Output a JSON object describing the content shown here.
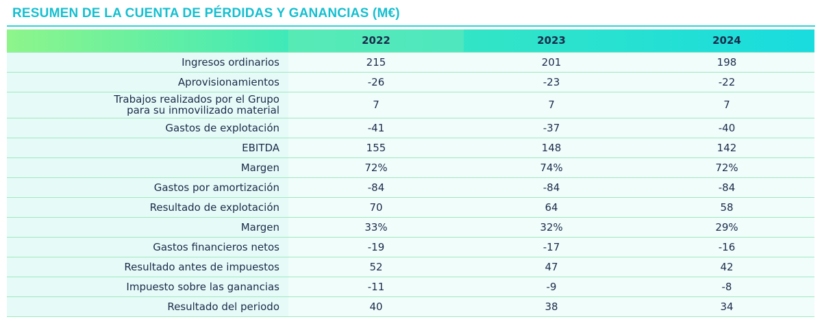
{
  "title": "RESUMEN DE LA CUENTA DE PÉRDIDAS Y GANANCIAS (M€)",
  "columns": [
    "",
    "2022",
    "2023",
    "2024"
  ],
  "rows": [
    {
      "label": "Ingresos ordinarios",
      "values": [
        "215",
        "201",
        "198"
      ]
    },
    {
      "label": "Aprovisionamientos",
      "values": [
        "-26",
        "-23",
        "-22"
      ]
    },
    {
      "label": "Trabajos realizados por el Grupo para su inmovilizado material",
      "values": [
        "7",
        "7",
        "7"
      ]
    },
    {
      "label": "Gastos de explotación",
      "values": [
        "-41",
        "-37",
        "-40"
      ]
    },
    {
      "label": "EBITDA",
      "values": [
        "155",
        "148",
        "142"
      ]
    },
    {
      "label": "Margen",
      "values": [
        "72%",
        "74%",
        "72%"
      ]
    },
    {
      "label": "Gastos por amortización",
      "values": [
        "-84",
        "-84",
        "-84"
      ]
    },
    {
      "label": "Resultado de explotación",
      "values": [
        "70",
        "64",
        "58"
      ]
    },
    {
      "label": "Margen",
      "values": [
        "33%",
        "32%",
        "29%"
      ]
    },
    {
      "label": "Gastos financieros netos",
      "values": [
        "-19",
        "-17",
        "-16"
      ]
    },
    {
      "label": "Resultado antes de impuestos",
      "values": [
        "52",
        "47",
        "42"
      ]
    },
    {
      "label": "Impuesto sobre las ganancias",
      "values": [
        "-11",
        "-9",
        "-8"
      ]
    },
    {
      "label": "Resultado del periodo",
      "values": [
        "40",
        "38",
        "34"
      ]
    }
  ],
  "colors": {
    "title": "#15bfd0",
    "rule": "#2ed3d8",
    "header_start": "#8ef58a",
    "header_end": "#19dcdf",
    "row_bg": "#e6fbf7",
    "text": "#1b2a4a"
  }
}
